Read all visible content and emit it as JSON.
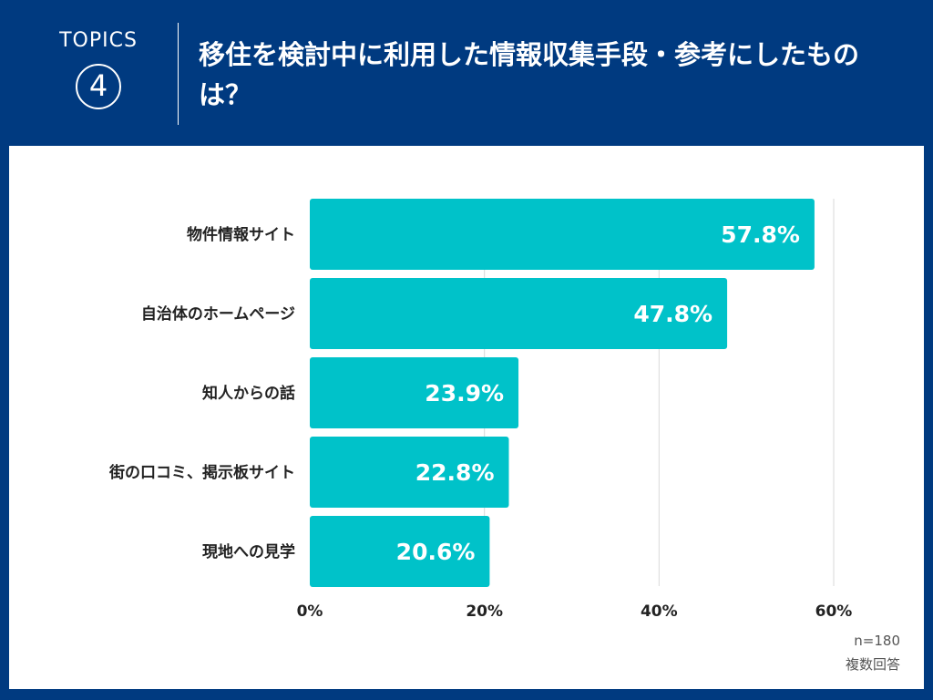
{
  "header": {
    "topics_label": "TOPICS",
    "topics_number": "4",
    "title": "移住を検討中に利用した情報収集手段・参考にしたものは？"
  },
  "notes": {
    "sample": "n=180",
    "answer_type": "複数回答"
  },
  "colors": {
    "header_bg": "#003a80",
    "bar": "#00c2c9",
    "grid": "#d9d9d9"
  },
  "chart_data": {
    "type": "bar",
    "orientation": "horizontal",
    "categories": [
      "物件情報サイト",
      "自治体のホームページ",
      "知人からの話",
      "街の口コミ、掲示板サイト",
      "現地への見学"
    ],
    "values": [
      57.8,
      47.8,
      23.9,
      22.8,
      20.6
    ],
    "data_labels": [
      "57.8%",
      "47.8%",
      "23.9%",
      "22.8%",
      "20.6%"
    ],
    "xlim": [
      0,
      60
    ],
    "x_ticks": [
      0,
      20,
      40,
      60
    ],
    "x_tick_labels": [
      "0%",
      "20%",
      "40%",
      "60%"
    ],
    "grid": true
  }
}
